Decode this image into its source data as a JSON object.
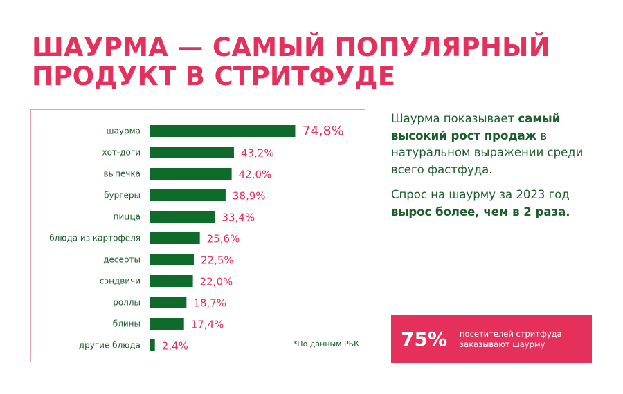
{
  "title": {
    "line1": "ШАУРМА — САМЫЙ ПОПУЛЯРНЫЙ",
    "line2": "ПРОДУКТ В СТРИТФУДЕ"
  },
  "colors": {
    "accent": "#e5305b",
    "bar": "#0e6b2a",
    "text_green": "#1a5e2a",
    "border": "#e8a0b6"
  },
  "chart_data": {
    "type": "bar",
    "orientation": "horizontal",
    "categories": [
      "шаурма",
      "хот-доги",
      "выпечка",
      "бургеры",
      "пицца",
      "блюда из картофеля",
      "десерты",
      "сэндвичи",
      "роллы",
      "блины",
      "другие блюда"
    ],
    "values": [
      74.8,
      43.2,
      42.0,
      38.9,
      33.4,
      25.6,
      22.5,
      22.0,
      18.7,
      17.4,
      2.4
    ],
    "value_labels": [
      "74,8%",
      "43,2%",
      "42,0%",
      "38,9%",
      "33,4%",
      "25,6%",
      "22,5%",
      "22,0%",
      "18,7%",
      "17,4%",
      "2,4%"
    ],
    "xlim": [
      0,
      100
    ],
    "grid": false,
    "footnote": "*По данным РБК"
  },
  "side": {
    "p1_a": "Шаурма показывает ",
    "p1_b": "самый высокий рост продаж",
    "p1_c": " в натуральном выражении среди всего фастфуда.",
    "p2_a": "Спрос на шаурму за 2023 год ",
    "p2_b": "вырос более, чем в 2 раза."
  },
  "stat": {
    "value": "75%",
    "caption_line1": "посетителей стритфуда",
    "caption_line2": "заказывают шаурму"
  }
}
